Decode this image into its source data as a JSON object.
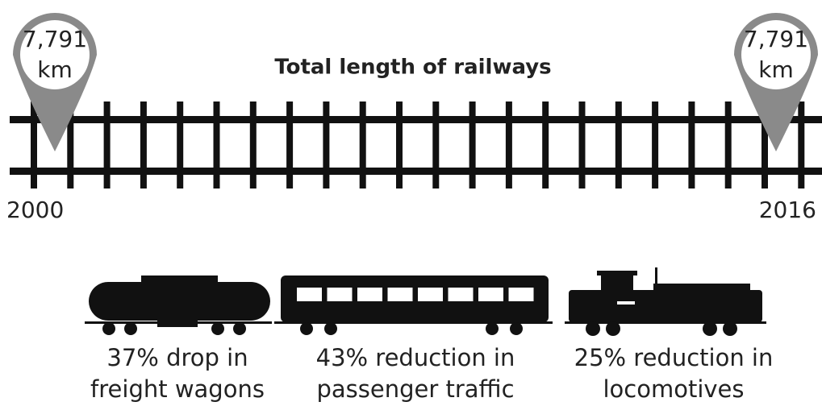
{
  "title": "Total length of railways",
  "pins": [
    {
      "value": "7,791",
      "unit": "km",
      "year": "2000"
    },
    {
      "value": "7,791",
      "unit": "km",
      "year": "2016"
    }
  ],
  "captions": [
    {
      "line1": "37% drop in",
      "line2": "freight wagons"
    },
    {
      "line1": "43% reduction in",
      "line2": "passenger traffic"
    },
    {
      "line1": "25% reduction in",
      "line2": "locomotives"
    }
  ]
}
